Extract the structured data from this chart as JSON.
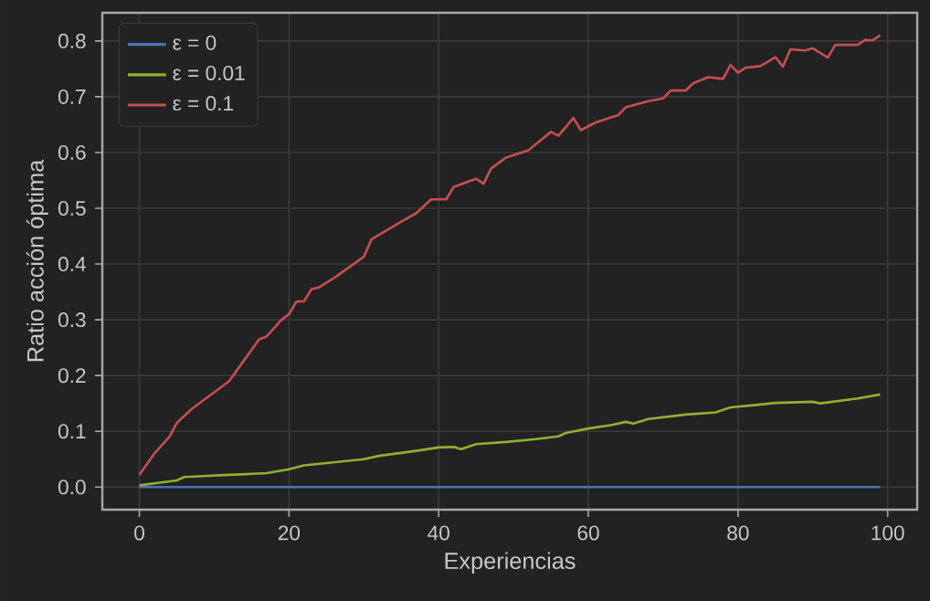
{
  "chart_data": {
    "type": "line",
    "xlabel": "Experiencias",
    "ylabel": "Ratio acción óptima",
    "xlim": [
      -4.95,
      103.95
    ],
    "ylim": [
      -0.0405,
      0.8505
    ],
    "xticks": [
      0,
      20,
      40,
      60,
      80,
      100
    ],
    "yticks": [
      {
        "value": 0,
        "label": "0.0"
      },
      0.1,
      0.2,
      0.3,
      0.4,
      0.5,
      0.6,
      0.7,
      0.8
    ],
    "grid": true,
    "legend": "top left",
    "marker": "none",
    "line_style": "solid",
    "series": [
      {
        "name": "ε = 0",
        "color": "#4a74b4",
        "x": [
          0,
          99
        ],
        "values": [
          0,
          0
        ]
      },
      {
        "name": "ε = 0.01",
        "color": "#8fb032",
        "x": [
          0,
          5,
          6,
          17,
          20,
          22,
          30,
          32,
          37,
          40,
          42,
          43,
          45,
          49,
          53,
          56,
          57,
          60,
          63,
          65,
          66,
          68,
          73,
          77,
          79,
          83,
          85,
          90,
          91,
          96,
          99
        ],
        "values": [
          0.003,
          0.012,
          0.018,
          0.025,
          0.032,
          0.039,
          0.05,
          0.056,
          0.065,
          0.071,
          0.072,
          0.068,
          0.077,
          0.081,
          0.086,
          0.091,
          0.097,
          0.105,
          0.111,
          0.117,
          0.114,
          0.122,
          0.13,
          0.134,
          0.143,
          0.148,
          0.151,
          0.153,
          0.15,
          0.159,
          0.166
        ]
      },
      {
        "name": "ε = 0.1",
        "color": "#c44e52",
        "x": [
          0,
          2,
          4,
          5,
          7,
          10,
          12,
          16,
          17,
          19,
          20,
          21,
          22,
          23,
          24,
          26,
          30,
          31,
          35,
          37,
          39,
          41,
          42,
          45,
          46,
          47,
          49,
          52,
          55,
          56,
          58,
          59,
          61,
          64,
          65,
          68,
          70,
          71,
          73,
          74,
          76,
          78,
          79,
          80,
          81,
          83,
          85,
          86,
          87,
          89,
          90,
          92,
          93,
          96,
          97,
          98,
          99
        ],
        "values": [
          0.022,
          0.06,
          0.09,
          0.115,
          0.14,
          0.17,
          0.19,
          0.265,
          0.27,
          0.3,
          0.31,
          0.333,
          0.333,
          0.355,
          0.358,
          0.375,
          0.413,
          0.444,
          0.476,
          0.491,
          0.516,
          0.516,
          0.538,
          0.553,
          0.544,
          0.571,
          0.591,
          0.604,
          0.637,
          0.63,
          0.662,
          0.64,
          0.654,
          0.667,
          0.681,
          0.692,
          0.697,
          0.711,
          0.711,
          0.724,
          0.735,
          0.732,
          0.757,
          0.743,
          0.752,
          0.755,
          0.771,
          0.754,
          0.785,
          0.783,
          0.787,
          0.77,
          0.793,
          0.793,
          0.802,
          0.801,
          0.81
        ]
      }
    ]
  }
}
